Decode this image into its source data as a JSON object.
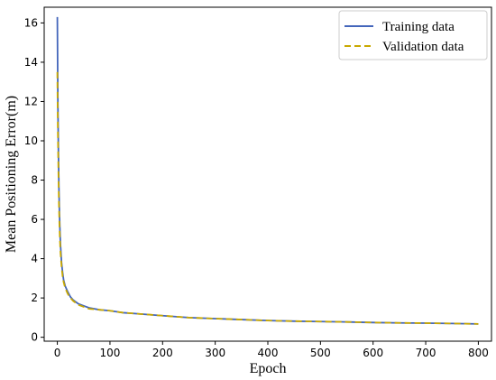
{
  "chart_data": {
    "type": "line",
    "title": "",
    "xlabel": "Epoch",
    "ylabel": "Mean Positioning Error(m)",
    "xlim": [
      -25,
      825
    ],
    "ylim": [
      -0.2,
      16.8
    ],
    "xticks": [
      0,
      100,
      200,
      300,
      400,
      500,
      600,
      700,
      800
    ],
    "yticks": [
      0,
      2,
      4,
      6,
      8,
      10,
      12,
      14,
      16
    ],
    "grid": false,
    "legend_position": "top-right",
    "series": [
      {
        "name": "Training data",
        "color": "#4466bb",
        "style": "solid",
        "x": [
          0,
          1,
          2,
          3,
          4,
          5,
          6,
          8,
          10,
          12,
          15,
          20,
          25,
          30,
          40,
          50,
          60,
          80,
          100,
          125,
          150,
          200,
          250,
          300,
          350,
          400,
          450,
          500,
          550,
          600,
          650,
          700,
          750,
          800
        ],
        "y": [
          16.3,
          12.0,
          9.5,
          7.6,
          6.3,
          5.4,
          4.7,
          3.8,
          3.3,
          2.9,
          2.6,
          2.3,
          2.05,
          1.9,
          1.7,
          1.6,
          1.5,
          1.4,
          1.35,
          1.25,
          1.2,
          1.1,
          1.0,
          0.95,
          0.9,
          0.85,
          0.82,
          0.8,
          0.78,
          0.75,
          0.73,
          0.72,
          0.7,
          0.68
        ]
      },
      {
        "name": "Validation data",
        "color": "#c8a800",
        "style": "dashed",
        "x": [
          0,
          1,
          2,
          3,
          4,
          5,
          6,
          8,
          10,
          12,
          15,
          20,
          25,
          30,
          40,
          50,
          60,
          80,
          100,
          125,
          150,
          200,
          250,
          300,
          350,
          400,
          450,
          500,
          550,
          600,
          650,
          700,
          750,
          800
        ],
        "y": [
          13.5,
          10.5,
          8.5,
          6.8,
          5.7,
          4.9,
          4.3,
          3.6,
          3.1,
          2.8,
          2.5,
          2.2,
          2.0,
          1.85,
          1.65,
          1.55,
          1.45,
          1.4,
          1.35,
          1.25,
          1.2,
          1.1,
          1.0,
          0.95,
          0.9,
          0.85,
          0.82,
          0.8,
          0.78,
          0.75,
          0.73,
          0.72,
          0.7,
          0.68
        ]
      }
    ]
  }
}
